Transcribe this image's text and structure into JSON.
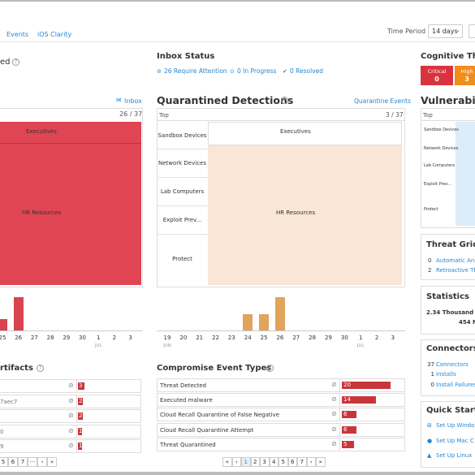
{
  "header": {
    "tabs": [
      "Events",
      "iOS Clarity"
    ],
    "time_period_label": "Time Period",
    "time_period_value": "14 days"
  },
  "left": {
    "title_fragment": "ed",
    "inbox_link": "Inbox",
    "count": "26 / 37",
    "treemap": [
      "Executives",
      "HR Resources"
    ],
    "chart": {
      "type": "bar",
      "categories": [
        "25",
        "26",
        "27",
        "28",
        "29",
        "30",
        "1",
        "2",
        "3"
      ],
      "months": [
        null,
        null,
        null,
        null,
        null,
        null,
        "JUL",
        null,
        null
      ],
      "values": [
        1,
        3,
        null,
        null,
        null,
        null,
        null,
        null,
        null
      ],
      "ylim": [
        0,
        3
      ],
      "color": "#d9434f"
    },
    "artifacts_title": "rtifacts",
    "artifacts": {
      "labels": [
        null,
        "7aec7",
        null,
        "0",
        "9"
      ],
      "values": [
        3,
        2,
        2,
        1,
        1
      ],
      "color": "#c8363c"
    },
    "pagination": [
      "5",
      "6",
      "7",
      "···",
      "›",
      "»"
    ]
  },
  "middle": {
    "inbox_status": {
      "title": "Inbox Status",
      "items": [
        "26 Require Attention",
        "0 In Progress",
        "0 Resolved"
      ]
    },
    "quarantined": {
      "title": "Quarantined Detections",
      "link": "Quarantine Events",
      "top": "Top",
      "count": "3 / 37",
      "groups": [
        "Sandbox Devices",
        "Network Devices",
        "Lab Computers",
        "Exploit Prev...",
        "Protect"
      ],
      "treemap": [
        "Executives",
        "HR Resources"
      ],
      "chart": {
        "type": "bar",
        "categories": [
          "19",
          "20",
          "21",
          "22",
          "23",
          "24",
          "25",
          "26",
          "27",
          "28",
          "29",
          "30",
          "1",
          "2",
          "3"
        ],
        "months": [
          "JUN",
          null,
          null,
          null,
          null,
          null,
          null,
          null,
          null,
          null,
          null,
          null,
          "JUL",
          null,
          null
        ],
        "values": [
          null,
          null,
          null,
          null,
          null,
          1,
          1,
          2,
          null,
          null,
          null,
          null,
          null,
          null,
          null
        ],
        "ylim": [
          0,
          2
        ],
        "color": "#e2a35d"
      }
    },
    "compromise": {
      "title": "Compromise Event Types",
      "rows": [
        "Threat Detected",
        "Executed malware",
        "Cloud Recall Quarantine of False Negative",
        "Cloud Recall Quarantine Attempt",
        "Threat Quarantined"
      ],
      "values": [
        20,
        14,
        6,
        6,
        5
      ],
      "xlim": [
        0,
        20
      ],
      "color": "#c8363c"
    },
    "pagination": [
      "«",
      "‹",
      "1",
      "2",
      "3",
      "4",
      "5",
      "6",
      "7",
      "›",
      "»"
    ]
  },
  "right": {
    "cognitive": {
      "title": "Cognitive Thr",
      "levels": [
        {
          "label": "Critical",
          "value": 0
        },
        {
          "label": "High",
          "value": 3
        }
      ]
    },
    "vulnerabilities": {
      "title": "Vulnerabiliti",
      "top": "Top",
      "groups": [
        "Sandbox Devices",
        "Network Devices",
        "Lab Computers",
        "Exploit Prev...",
        "Protect"
      ]
    },
    "threat_grid": {
      "title": "Threat Grid",
      "items": [
        {
          "count": 0,
          "label": "Automatic Ana"
        },
        {
          "count": 2,
          "label": "Retroactive Th"
        }
      ]
    },
    "statistics": {
      "title": "Statistics",
      "items": [
        "2.34 Thousand F",
        "454 N"
      ]
    },
    "connectors": {
      "title": "Connectors",
      "items": [
        {
          "count": 37,
          "label": "Connectors"
        },
        {
          "count": 1,
          "label": "Installs"
        },
        {
          "count": 0,
          "label": "Install Failures"
        }
      ]
    },
    "quick_start": {
      "title": "Quick Start",
      "items": [
        "Set Up Windo",
        "Set Up Mac C",
        "Set Up Linux"
      ]
    }
  }
}
